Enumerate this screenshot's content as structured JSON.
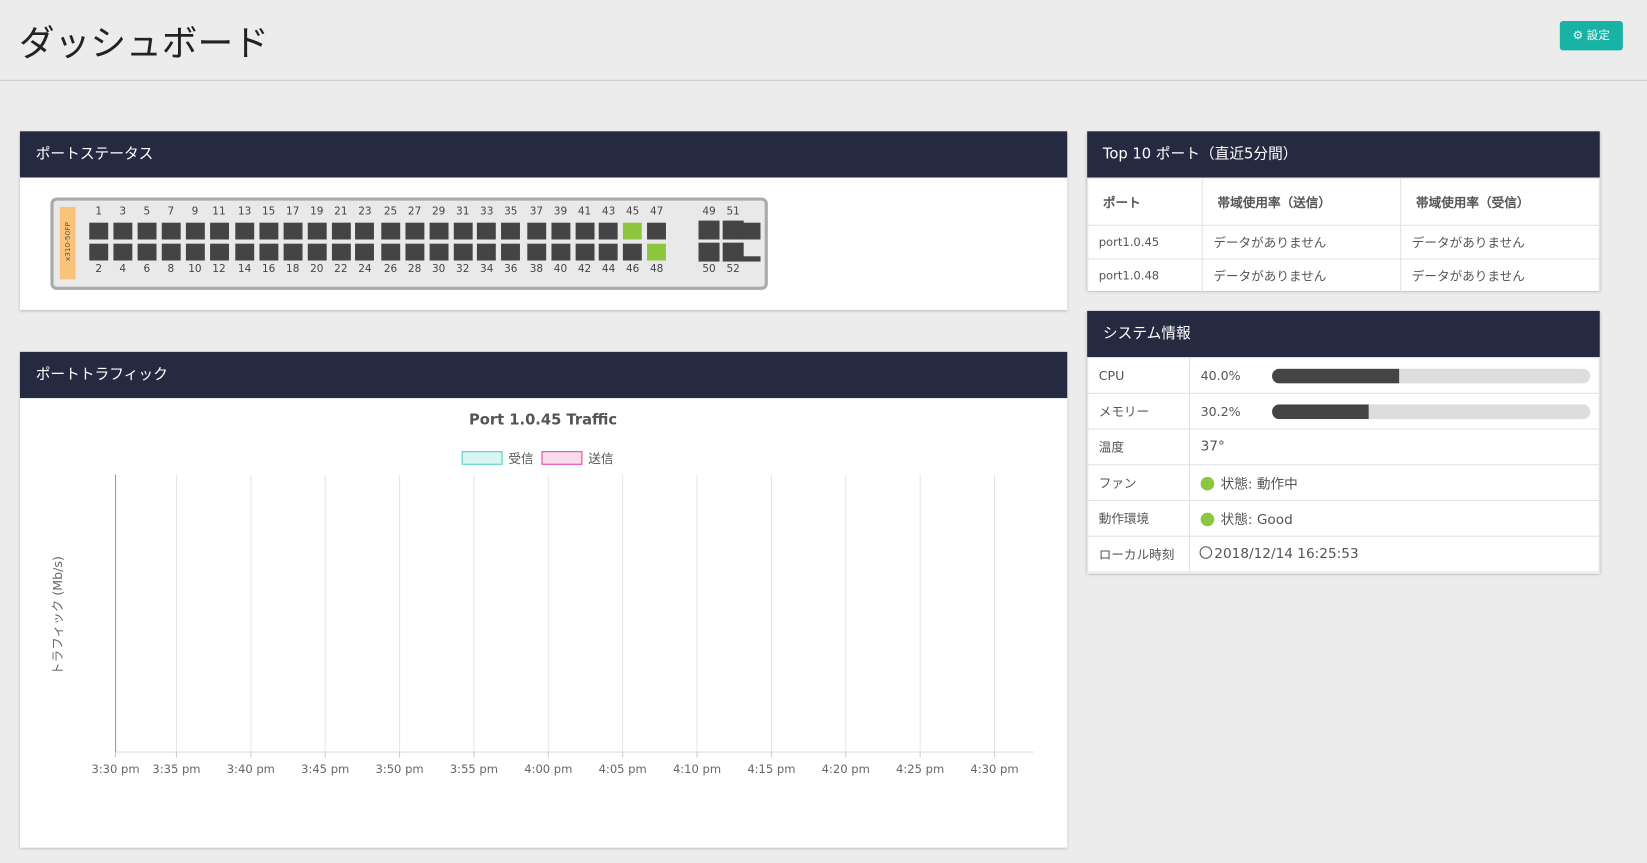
{
  "header": {
    "title": "ダッシュボード",
    "settings_button": "設定"
  },
  "port_status": {
    "title": "ポートステータス",
    "model": "x310-50FP",
    "top_labels": [
      "1",
      "3",
      "5",
      "7",
      "9",
      "11",
      "13",
      "15",
      "17",
      "19",
      "21",
      "23",
      "25",
      "27",
      "29",
      "31",
      "33",
      "35",
      "37",
      "39",
      "41",
      "43",
      "45",
      "47",
      "49",
      "51"
    ],
    "bottom_labels": [
      "2",
      "4",
      "6",
      "8",
      "10",
      "12",
      "14",
      "16",
      "18",
      "20",
      "22",
      "24",
      "26",
      "28",
      "30",
      "32",
      "34",
      "36",
      "38",
      "40",
      "42",
      "44",
      "46",
      "48",
      "50",
      "52"
    ],
    "active_ports": [
      "45",
      "48"
    ],
    "active_color": "#8dc63f"
  },
  "traffic": {
    "title": "ポートトラフィック",
    "chart": {
      "title": "Port 1.0.45 Traffic",
      "legend": [
        {
          "name": "受信",
          "color": "#4ecdc4",
          "fill": "#d7f6f2"
        },
        {
          "name": "送信",
          "color": "#e040a8",
          "fill": "#fadcef"
        }
      ],
      "y_label": "トラフィック (Mb/s)",
      "xticks": [
        "3:30 pm",
        "3:35 pm",
        "3:40 pm",
        "3:45 pm",
        "3:50 pm",
        "3:55 pm",
        "4:00 pm",
        "4:05 pm",
        "4:10 pm",
        "4:15 pm",
        "4:20 pm",
        "4:25 pm",
        "4:30 pm"
      ]
    }
  },
  "top10": {
    "title": "Top 10 ポート（直近5分間）",
    "columns": [
      "ポート",
      "帯域使用率（送信）",
      "帯域使用率（受信）"
    ],
    "rows": [
      [
        "port1.0.45",
        "データがありません",
        "データがありません"
      ],
      [
        "port1.0.48",
        "データがありません",
        "データがありません"
      ]
    ]
  },
  "system": {
    "title": "システム情報",
    "rows": [
      {
        "label": "CPU",
        "value": {
          "label": "40.0%",
          "value": 40
        }
      },
      {
        "label": "メモリー",
        "value": {
          "label": "30.2%",
          "value": 30.2
        }
      },
      {
        "label": "温度",
        "value": "37°"
      },
      {
        "label": "ファン",
        "value": "状態: 動作中",
        "icon": "check"
      },
      {
        "label": "動作環境",
        "value": "状態: Good",
        "icon": "check"
      },
      {
        "label": "ローカル時刻",
        "value": "2018/12/14 16:25:53",
        "icon": "clock"
      }
    ]
  }
}
